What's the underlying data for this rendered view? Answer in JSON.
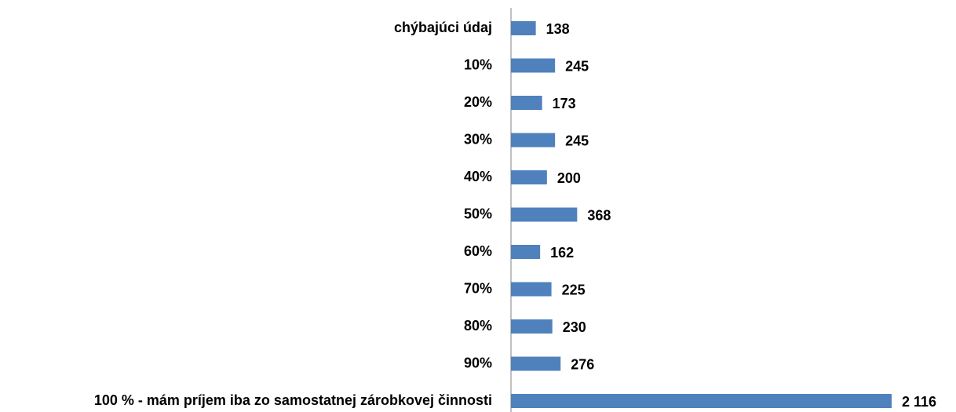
{
  "chart_data": {
    "type": "barh",
    "categories": [
      "chýbajúci údaj",
      "10%",
      "20%",
      "30%",
      "40%",
      "50%",
      "60%",
      "70%",
      "80%",
      "90%",
      "100 % - mám príjem iba zo samostatnej zárobkovej činnosti"
    ],
    "values": [
      138,
      245,
      173,
      245,
      200,
      368,
      162,
      225,
      230,
      276,
      2116
    ],
    "value_labels": [
      "138",
      "245",
      "173",
      "245",
      "200",
      "368",
      "162",
      "225",
      "230",
      "276",
      "2 116"
    ],
    "color": "#4f81bd"
  }
}
